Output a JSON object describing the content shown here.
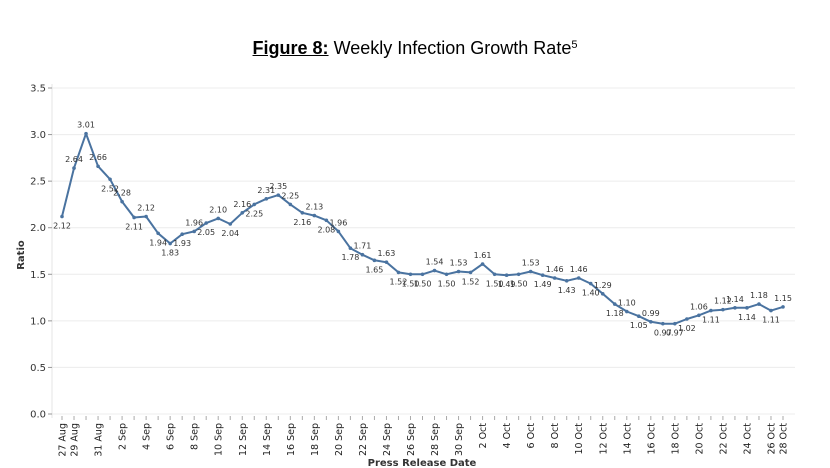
{
  "figure": {
    "prefix": "Figure 8:",
    "title": "Weekly Infection Growth Rate",
    "footnote": "5"
  },
  "chart_data": {
    "type": "line",
    "title": "Figure 8: Weekly Infection Growth Rate",
    "xlabel": "Press Release Date",
    "ylabel": "Ratio",
    "ylim": [
      0,
      3.5
    ],
    "yticks": [
      "0.0",
      "0.5",
      "1.0",
      "1.5",
      "2.0",
      "2.5",
      "3.0",
      "3.5"
    ],
    "grid": true,
    "line_color": "#4a73a0",
    "x": [
      "27 Aug",
      "29 Aug",
      "30 Aug",
      "31 Aug",
      "1 Sep",
      "2 Sep",
      "3 Sep",
      "4 Sep",
      "5 Sep",
      "6 Sep",
      "7 Sep",
      "8 Sep",
      "9 Sep",
      "10 Sep",
      "11 Sep",
      "12 Sep",
      "13 Sep",
      "14 Sep",
      "15 Sep",
      "16 Sep",
      "17 Sep",
      "18 Sep",
      "19 Sep",
      "20 Sep",
      "21 Sep",
      "22 Sep",
      "23 Sep",
      "24 Sep",
      "25 Sep",
      "26 Sep",
      "27 Sep",
      "28 Sep",
      "29 Sep",
      "30 Sep",
      "1 Oct",
      "2 Oct",
      "3 Oct",
      "4 Oct",
      "5 Oct",
      "6 Oct",
      "7 Oct",
      "8 Oct",
      "9 Oct",
      "10 Oct",
      "11 Oct",
      "12 Oct",
      "13 Oct",
      "14 Oct",
      "15 Oct",
      "16 Oct",
      "17 Oct",
      "18 Oct",
      "19 Oct",
      "20 Oct",
      "21 Oct",
      "22 Oct",
      "23 Oct",
      "24 Oct",
      "25 Oct",
      "26 Oct",
      "28 Oct"
    ],
    "xtick_labels": [
      "27 Aug",
      "29 Aug",
      "31 Aug",
      "2 Sep",
      "4 Sep",
      "6 Sep",
      "8 Sep",
      "10 Sep",
      "12 Sep",
      "14 Sep",
      "16 Sep",
      "18 Sep",
      "20 Sep",
      "22 Sep",
      "24 Sep",
      "26 Sep",
      "28 Sep",
      "30 Sep",
      "2 Oct",
      "4 Oct",
      "6 Oct",
      "8 Oct",
      "10 Oct",
      "12 Oct",
      "14 Oct",
      "16 Oct",
      "18 Oct",
      "20 Oct",
      "22 Oct",
      "24 Oct",
      "26 Oct",
      "28 Oct"
    ],
    "series": [
      {
        "name": "Ratio",
        "values": [
          2.12,
          2.64,
          3.01,
          2.66,
          2.52,
          2.28,
          2.11,
          2.12,
          1.94,
          1.83,
          1.93,
          1.96,
          2.05,
          2.1,
          2.04,
          2.16,
          2.25,
          2.31,
          2.35,
          2.25,
          2.16,
          2.13,
          2.08,
          1.96,
          1.78,
          1.71,
          1.65,
          1.63,
          1.52,
          1.5,
          1.5,
          1.54,
          1.5,
          1.53,
          1.52,
          1.61,
          1.5,
          1.49,
          1.5,
          1.53,
          1.49,
          1.46,
          1.43,
          1.46,
          1.4,
          1.29,
          1.18,
          1.1,
          1.05,
          0.99,
          0.97,
          0.97,
          1.02,
          1.06,
          1.11,
          1.12,
          1.14,
          1.14,
          1.18,
          1.11,
          1.15
        ]
      }
    ]
  }
}
